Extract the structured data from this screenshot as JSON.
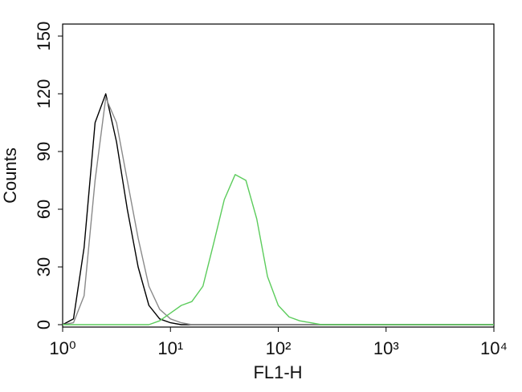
{
  "chart_data": {
    "type": "line",
    "x_label": "FL1-H",
    "y_label": "Counts",
    "x": [
      1,
      1.26,
      1.58,
      2,
      2.51,
      3.16,
      3.98,
      5.01,
      6.31,
      7.94,
      10,
      12.6,
      15.8,
      20,
      25.1,
      31.6,
      39.8,
      50.1,
      63.1,
      79.4,
      100,
      126,
      158,
      200,
      251,
      316,
      1000,
      10000
    ],
    "series": [
      {
        "color": "#000000",
        "values": [
          0,
          3,
          40,
          105,
          120,
          95,
          60,
          30,
          10,
          3,
          1,
          0,
          0,
          0,
          0,
          0,
          0,
          0,
          0,
          0,
          0,
          0,
          0,
          0,
          0,
          0,
          0,
          0
        ]
      },
      {
        "color": "#8a8a8a",
        "values": [
          0,
          1,
          15,
          75,
          118,
          105,
          75,
          45,
          20,
          8,
          3,
          1,
          0,
          0,
          0,
          0,
          0,
          0,
          0,
          0,
          0,
          0,
          0,
          0,
          0,
          0,
          0,
          0
        ]
      },
      {
        "color": "#5ccc5c",
        "values": [
          0,
          0,
          0,
          0,
          0,
          0,
          0,
          0,
          0,
          2,
          6,
          10,
          12,
          20,
          42,
          65,
          78,
          75,
          55,
          25,
          10,
          4,
          2,
          1,
          0,
          0,
          0,
          0
        ]
      }
    ],
    "log_x": true,
    "xlim": [
      1,
      10000
    ],
    "xticks": [
      {
        "value": 1,
        "label": "10⁰"
      },
      {
        "value": 10,
        "label": "10¹"
      },
      {
        "value": 100,
        "label": "10²"
      },
      {
        "value": 1000,
        "label": "10³"
      },
      {
        "value": 10000,
        "label": "10⁴"
      }
    ],
    "ylim": [
      -1.25,
      156.25
    ],
    "yticks": [
      0,
      30,
      60,
      90,
      120,
      150
    ]
  }
}
